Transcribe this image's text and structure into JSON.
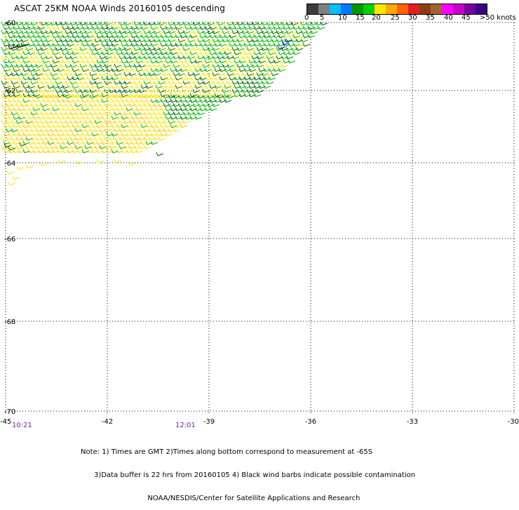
{
  "title": "ASCAT 25KM NOAA Winds 20160105 descending",
  "legend": {
    "segments": [
      {
        "color": "#3c3c3c"
      },
      {
        "color": "#808080"
      },
      {
        "color": "#00bfff"
      },
      {
        "color": "#0078ff"
      },
      {
        "color": "#009600"
      },
      {
        "color": "#00d200"
      },
      {
        "color": "#ffe600"
      },
      {
        "color": "#ffaa00"
      },
      {
        "color": "#ff6400"
      },
      {
        "color": "#e61e1e"
      },
      {
        "color": "#8c3c14"
      },
      {
        "color": "#a06432"
      },
      {
        "color": "#ff00ff"
      },
      {
        "color": "#c800c8"
      },
      {
        "color": "#7a00a0"
      },
      {
        "color": "#3c0082"
      }
    ],
    "labels": [
      "0",
      "5",
      "10",
      "15",
      "20",
      "25",
      "30",
      "35",
      "40",
      "45",
      ">50 knots"
    ]
  },
  "lat_labels": [
    "-60",
    "-62",
    "-64",
    "-66",
    "-68",
    "-70"
  ],
  "lon_labels": [
    "-45",
    "-42",
    "-39",
    "-36",
    "-33",
    "-30"
  ],
  "time_labels": [
    "10:21",
    "12:01"
  ],
  "note_lines": [
    "Note: 1) Times are GMT 2)Times along bottom correspond to measurement at -65S",
    "      3)Data buffer is 22 hrs from 20160105 4) Black wind barbs indicate possible contamination",
    "                              NOAA/NESDIS/Center for Satellite Applications and Research"
  ],
  "colors": {
    "wind_green_dark": "#006400",
    "wind_green": "#00b400",
    "wind_yellow": "#ffe600",
    "wind_orange_yellow": "#ffc800",
    "wind_blue": "#0000ff",
    "contaminated": "#000000",
    "time_label": "#7a1fa2"
  }
}
